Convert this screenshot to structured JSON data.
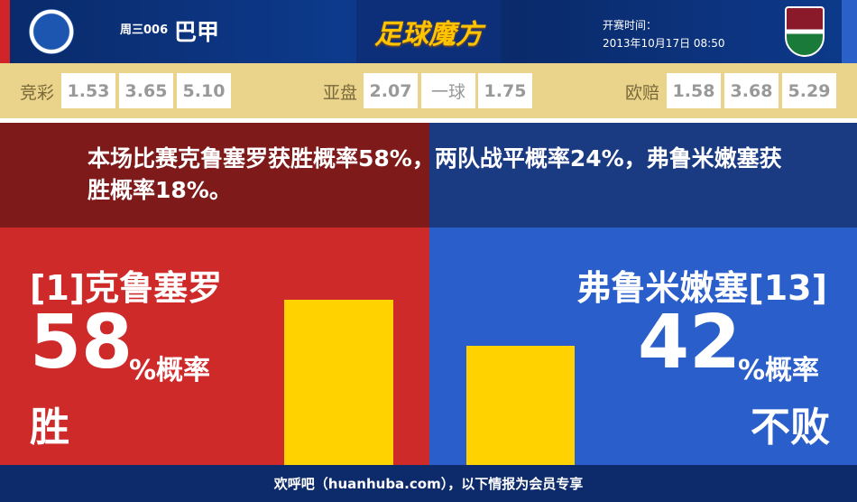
{
  "header": {
    "match_no": "周三006",
    "league": "巴甲",
    "brand": "足球魔方",
    "kickoff_label": "开赛时间：",
    "kickoff_time": "2013年10月17日 08:50"
  },
  "odds": {
    "jingcai": {
      "label": "竞彩",
      "values": [
        "1.53",
        "3.65",
        "5.10"
      ]
    },
    "yapan": {
      "label": "亚盘",
      "values": [
        "2.07",
        "一球",
        "1.75"
      ]
    },
    "ouzhi": {
      "label": "欧赔",
      "values": [
        "1.58",
        "3.68",
        "5.29"
      ]
    }
  },
  "summary": "本场比赛克鲁塞罗获胜概率58%，两队战平概率24%，弗鲁米嫩塞获胜概率18%。",
  "home": {
    "name": "[1]克鲁塞罗",
    "pct": "58",
    "pct_suffix": "%概率",
    "result": "胜",
    "bar_fraction": 0.58
  },
  "away": {
    "name": "弗鲁米嫩塞[13]",
    "pct": "42",
    "pct_suffix": "%概率",
    "result": "不败",
    "bar_fraction": 0.42
  },
  "footer": "欢呼吧（huanhuba.com），以下情报为会员专享",
  "colors": {
    "home": "#cf2a2a",
    "away": "#2a5fcb",
    "bar": "#ffd200",
    "odds_bg": "#ead38a"
  }
}
